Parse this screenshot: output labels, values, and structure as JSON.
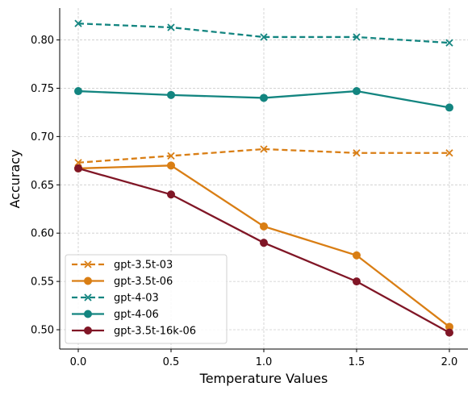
{
  "chart_data": {
    "type": "line",
    "xlabel": "Temperature Values",
    "ylabel": "Accuracy",
    "x": [
      0.0,
      0.5,
      1.0,
      1.5,
      2.0
    ],
    "x_ticks": [
      "0.0",
      "0.5",
      "1.0",
      "1.5",
      "2.0"
    ],
    "y_ticks": [
      "0.50",
      "0.55",
      "0.60",
      "0.65",
      "0.70",
      "0.75",
      "0.80"
    ],
    "xlim": [
      -0.1,
      2.1
    ],
    "ylim": [
      0.48,
      0.833
    ],
    "grid": true,
    "legend_position": "bottom-left",
    "series": [
      {
        "name": "gpt-3.5t-03",
        "values": [
          0.673,
          0.68,
          0.687,
          0.683,
          0.683
        ],
        "color": "#d97e14",
        "dash": true,
        "marker": "x"
      },
      {
        "name": "gpt-3.5t-06",
        "values": [
          0.667,
          0.67,
          0.607,
          0.577,
          0.503
        ],
        "color": "#d97e14",
        "dash": false,
        "marker": "o"
      },
      {
        "name": "gpt-4-03",
        "values": [
          0.817,
          0.813,
          0.803,
          0.803,
          0.797
        ],
        "color": "#138580",
        "dash": true,
        "marker": "x"
      },
      {
        "name": "gpt-4-06",
        "values": [
          0.747,
          0.743,
          0.74,
          0.747,
          0.73
        ],
        "color": "#138580",
        "dash": false,
        "marker": "o"
      },
      {
        "name": "gpt-3.5t-16k-06",
        "values": [
          0.667,
          0.64,
          0.59,
          0.55,
          0.497
        ],
        "color": "#801626",
        "dash": false,
        "marker": "o"
      }
    ]
  }
}
